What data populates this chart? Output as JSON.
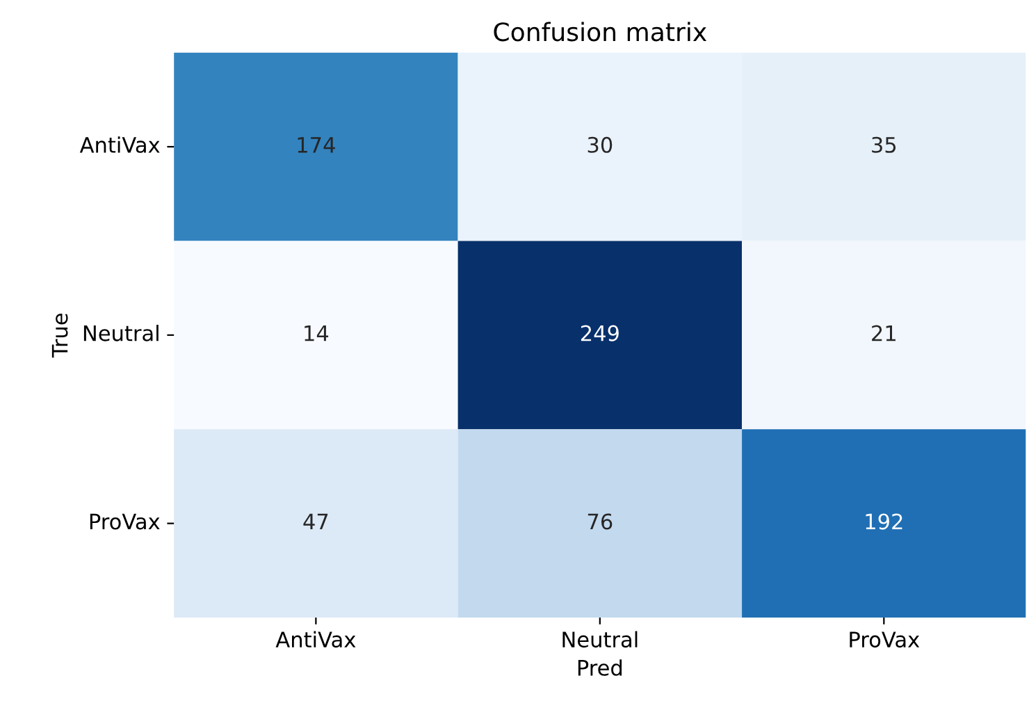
{
  "chart_data": {
    "type": "heatmap",
    "title": "Confusion matrix",
    "xlabel": "Pred",
    "ylabel": "True",
    "categories": [
      "AntiVax",
      "Neutral",
      "ProVax"
    ],
    "y_categories": [
      "AntiVax",
      "Neutral",
      "ProVax"
    ],
    "cells": [
      [
        174,
        30,
        35
      ],
      [
        14,
        249,
        21
      ],
      [
        47,
        76,
        192
      ]
    ],
    "data_labels": true
  }
}
